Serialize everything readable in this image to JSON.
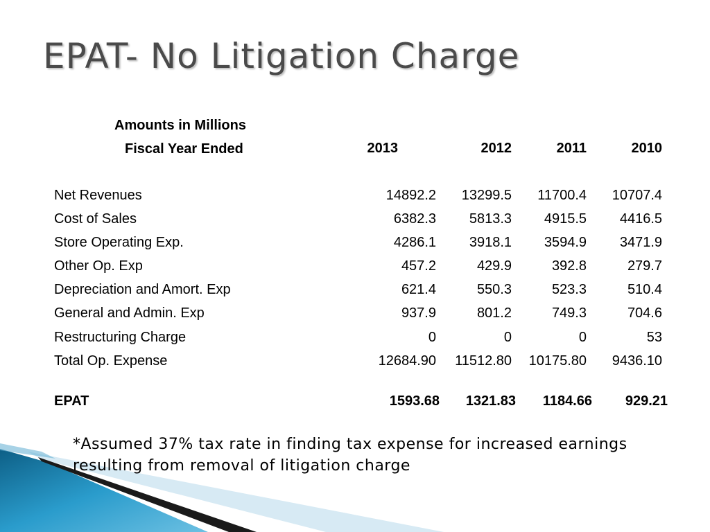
{
  "slide": {
    "title": "EPAT- No Litigation Charge"
  },
  "table": {
    "header_line1": "Amounts in Millions",
    "header_line2": "Fiscal Year Ended",
    "years": [
      "2013",
      "2012",
      "2011",
      "2010"
    ],
    "rows": [
      {
        "label": "Net Revenues",
        "values": [
          "14892.2",
          "13299.5",
          "11700.4",
          "10707.4"
        ]
      },
      {
        "label": "Cost of Sales",
        "values": [
          "6382.3",
          "5813.3",
          "4915.5",
          "4416.5"
        ]
      },
      {
        "label": "Store Operating Exp.",
        "values": [
          "4286.1",
          "3918.1",
          "3594.9",
          "3471.9"
        ]
      },
      {
        "label": "Other Op. Exp",
        "values": [
          "457.2",
          "429.9",
          "392.8",
          "279.7"
        ]
      },
      {
        "label": "Depreciation and Amort. Exp",
        "values": [
          "621.4",
          "550.3",
          "523.3",
          "510.4"
        ]
      },
      {
        "label": "General and Admin. Exp",
        "values": [
          "937.9",
          "801.2",
          "749.3",
          "704.6"
        ]
      },
      {
        "label": "Restructuring Charge",
        "values": [
          "0",
          "0",
          "0",
          "53"
        ]
      },
      {
        "label": "Total Op. Expense",
        "values": [
          "12684.90",
          "11512.80",
          "10175.80",
          "9436.10"
        ]
      }
    ],
    "total_row": {
      "label": "EPAT",
      "values": [
        "1593.68",
        "1321.83",
        "1184.66",
        "929.21"
      ]
    }
  },
  "footnote": "*Assumed 37% tax rate in finding tax expense for increased earnings resulting from removal of litigation charge",
  "colors": {
    "title": "#4a4a4a",
    "accent_blue": "#1f86b3",
    "accent_light": "#cfe6f2",
    "accent_dark": "#0c0c0c"
  }
}
